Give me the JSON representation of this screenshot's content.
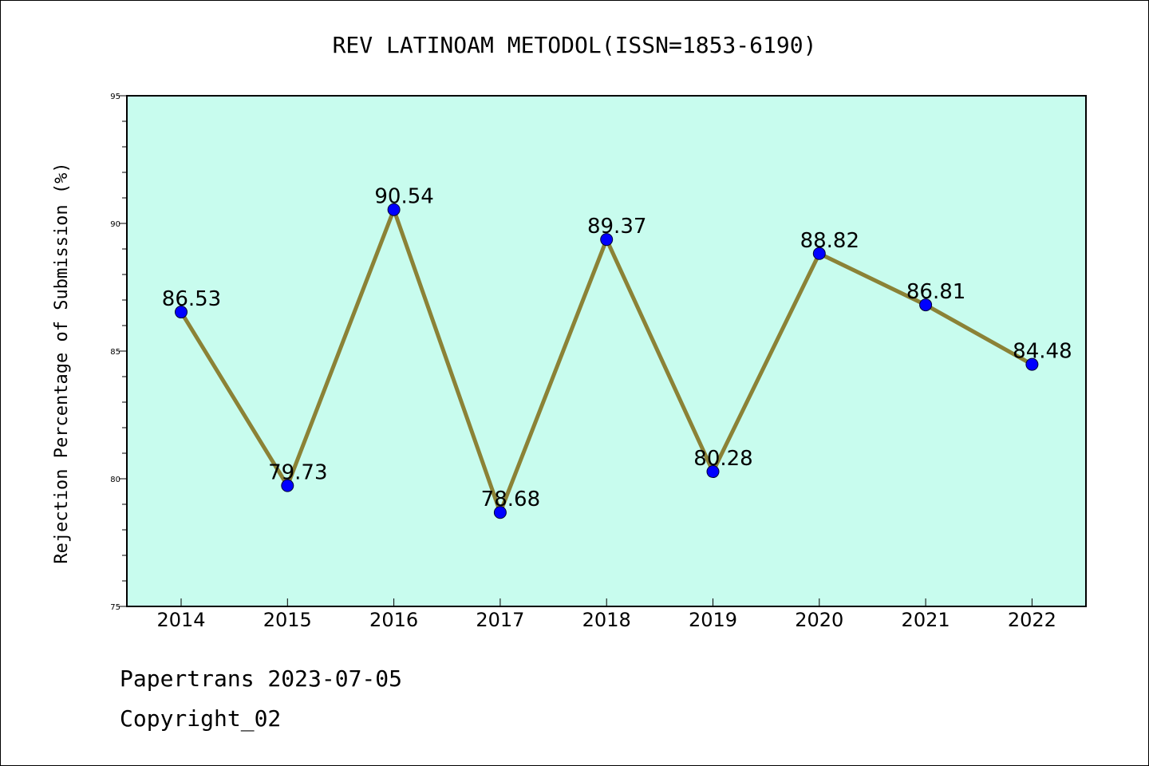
{
  "chart_data": {
    "type": "line",
    "title": "REV LATINOAM METODOL(ISSN=1853-6190)",
    "xlabel": "",
    "ylabel": "Rejection Percentage of Submission (%)",
    "categories": [
      "2014",
      "2015",
      "2016",
      "2017",
      "2018",
      "2019",
      "2020",
      "2021",
      "2022"
    ],
    "values": [
      86.53,
      79.73,
      90.54,
      78.68,
      89.37,
      80.28,
      88.82,
      86.81,
      84.48
    ],
    "data_labels": [
      "86.53",
      "79.73",
      "90.54",
      "78.68",
      "89.37",
      "80.28",
      "88.82",
      "86.81",
      "84.48"
    ],
    "ylim": [
      75,
      95
    ],
    "yticks": [
      "75",
      "80",
      "85",
      "90",
      "95"
    ],
    "grid": false,
    "colors": {
      "plot_background": "#c8fcee",
      "line": "#8b8236",
      "marker": "#0000ff"
    }
  },
  "footer": {
    "line1": "Papertrans 2023-07-05",
    "line2": "Copyright_02"
  }
}
